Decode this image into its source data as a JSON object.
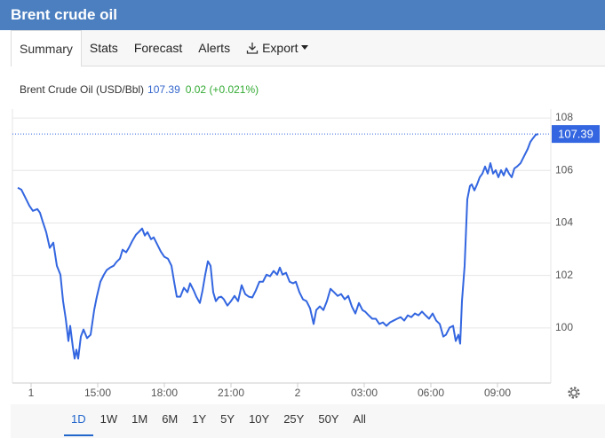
{
  "header": {
    "title": "Brent crude oil"
  },
  "tabs": [
    "Summary",
    "Stats",
    "Forecast",
    "Alerts",
    "Export"
  ],
  "chart_data": {
    "type": "line",
    "change": "0.02 (+0.021%)",
    "x": [
      11.4,
      11.56,
      11.72,
      11.92,
      12.08,
      12.28,
      12.4,
      12.52,
      12.68,
      12.84,
      13.0,
      13.16,
      13.32,
      13.44,
      13.56,
      13.68,
      13.76,
      13.88,
      13.96,
      14.04,
      14.12,
      14.24,
      14.36,
      14.52,
      14.68,
      14.84,
      14.96,
      15.12,
      15.28,
      15.4,
      15.56,
      15.72,
      15.84,
      16.0,
      16.12,
      16.28,
      16.4,
      16.56,
      16.72,
      16.84,
      17.0,
      17.12,
      17.24,
      17.4,
      17.52,
      17.68,
      17.84,
      18.0,
      18.16,
      18.32,
      18.44,
      18.56,
      18.72,
      18.88,
      19.04,
      19.16,
      19.32,
      19.44,
      19.6,
      19.72,
      19.84,
      19.96,
      20.08,
      20.2,
      20.32,
      20.44,
      20.56,
      20.68,
      20.84,
      21.0,
      21.16,
      21.32,
      21.48,
      21.64,
      21.8,
      21.96,
      22.12,
      22.28,
      22.44,
      22.6,
      22.76,
      22.92,
      23.08,
      23.2,
      23.32,
      23.48,
      23.64,
      23.8,
      23.92,
      24.08,
      24.24,
      24.4,
      24.56,
      24.72,
      24.84,
      25.0,
      25.16,
      25.32,
      25.48,
      25.64,
      25.8,
      25.96,
      26.12,
      26.28,
      26.44,
      26.6,
      26.76,
      26.92,
      27.04,
      27.2,
      27.36,
      27.52,
      27.68,
      27.84,
      28.0,
      28.16,
      28.32,
      28.48,
      28.64,
      28.8,
      28.96,
      29.12,
      29.28,
      29.44,
      29.6,
      29.76,
      29.92,
      30.08,
      30.24,
      30.4,
      30.56,
      30.68,
      30.84,
      31.0,
      31.12,
      31.24,
      31.32,
      31.4,
      31.52,
      31.64,
      31.76,
      31.84,
      31.96,
      32.08,
      32.2,
      32.32,
      32.44,
      32.56,
      32.68,
      32.8,
      32.92,
      33.04,
      33.16,
      33.28,
      33.4,
      33.52,
      33.64,
      33.76,
      33.88,
      34.04,
      34.2,
      34.36,
      34.48,
      34.6,
      34.72,
      34.84
    ],
    "series": [
      {
        "name": "Brent Crude Oil (USD/Bbl)",
        "color": "#3366e0",
        "values": [
          105.34,
          105.27,
          105.0,
          104.66,
          104.46,
          104.53,
          104.39,
          104.06,
          103.65,
          103.05,
          103.25,
          102.37,
          102.03,
          101.02,
          100.35,
          99.5,
          100.08,
          99.27,
          98.83,
          99.17,
          98.83,
          99.67,
          99.94,
          99.61,
          99.74,
          100.68,
          101.19,
          101.76,
          102.03,
          102.2,
          102.3,
          102.37,
          102.51,
          102.64,
          102.98,
          102.88,
          103.05,
          103.32,
          103.55,
          103.65,
          103.79,
          103.52,
          103.65,
          103.38,
          103.45,
          103.18,
          102.91,
          102.71,
          102.64,
          102.37,
          101.76,
          101.19,
          101.19,
          101.53,
          101.36,
          101.7,
          101.43,
          101.19,
          100.95,
          101.43,
          102.03,
          102.54,
          102.37,
          101.36,
          101.02,
          101.16,
          101.19,
          101.09,
          100.85,
          101.02,
          101.22,
          101.02,
          101.63,
          101.29,
          101.19,
          101.16,
          101.43,
          101.76,
          101.76,
          102.03,
          101.97,
          102.17,
          102.03,
          102.3,
          102.03,
          102.1,
          101.76,
          101.7,
          101.76,
          101.36,
          101.09,
          101.02,
          100.75,
          100.15,
          100.68,
          100.82,
          100.68,
          101.02,
          101.49,
          101.36,
          101.22,
          101.29,
          101.09,
          101.22,
          100.82,
          100.55,
          100.95,
          100.68,
          100.62,
          100.48,
          100.35,
          100.35,
          100.15,
          100.21,
          100.08,
          100.21,
          100.28,
          100.35,
          100.41,
          100.28,
          100.48,
          100.41,
          100.55,
          100.48,
          100.62,
          100.48,
          100.35,
          100.55,
          100.28,
          100.15,
          99.67,
          99.74,
          100.01,
          100.08,
          99.5,
          99.74,
          99.4,
          101.02,
          102.37,
          104.9,
          105.41,
          105.47,
          105.24,
          105.47,
          105.74,
          105.88,
          106.15,
          105.88,
          106.28,
          105.88,
          106.01,
          105.74,
          106.01,
          105.81,
          106.08,
          105.88,
          105.74,
          106.08,
          106.15,
          106.28,
          106.55,
          106.82,
          107.09,
          107.23,
          107.36,
          107.39
        ]
      }
    ],
    "xlim": [
      11.16,
      35.4
    ],
    "xticks": [
      {
        "value": 12,
        "label": "1"
      },
      {
        "value": 15,
        "label": "15:00"
      },
      {
        "value": 18,
        "label": "18:00"
      },
      {
        "value": 21,
        "label": "21:00"
      },
      {
        "value": 24,
        "label": "2"
      },
      {
        "value": 27,
        "label": "03:00"
      },
      {
        "value": 30,
        "label": "06:00"
      },
      {
        "value": 33,
        "label": "09:00"
      }
    ],
    "ylim": [
      97.9,
      108.34
    ],
    "yticks": [
      100,
      102,
      104,
      106,
      108
    ],
    "grid": true
  },
  "ranges": [
    "1D",
    "1W",
    "1M",
    "6M",
    "1Y",
    "5Y",
    "10Y",
    "25Y",
    "50Y",
    "All"
  ]
}
